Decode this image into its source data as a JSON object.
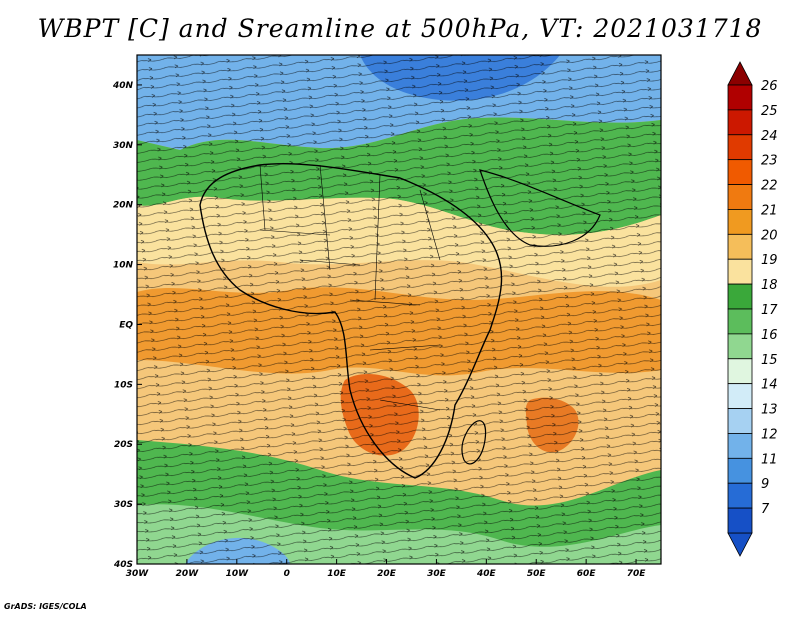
{
  "title": "WBPT [C] and Sreamline at 500hPa, VT: 2021031718",
  "credit": "GrADS: IGES/COLA",
  "map": {
    "lon_range": [
      -30,
      75
    ],
    "lat_range": [
      -40,
      45
    ],
    "lon_ticks": [
      {
        "value": -30,
        "label": "30W"
      },
      {
        "value": -20,
        "label": "20W"
      },
      {
        "value": -10,
        "label": "10W"
      },
      {
        "value": 0,
        "label": "0"
      },
      {
        "value": 10,
        "label": "10E"
      },
      {
        "value": 20,
        "label": "20E"
      },
      {
        "value": 30,
        "label": "30E"
      },
      {
        "value": 40,
        "label": "40E"
      },
      {
        "value": 50,
        "label": "50E"
      },
      {
        "value": 60,
        "label": "60E"
      },
      {
        "value": 70,
        "label": "70E"
      }
    ],
    "lat_ticks": [
      {
        "value": 40,
        "label": "40N"
      },
      {
        "value": 30,
        "label": "30N"
      },
      {
        "value": 20,
        "label": "20N"
      },
      {
        "value": 10,
        "label": "10N"
      },
      {
        "value": 0,
        "label": "EQ"
      },
      {
        "value": -10,
        "label": "10S"
      },
      {
        "value": -20,
        "label": "20S"
      },
      {
        "value": -30,
        "label": "30S"
      },
      {
        "value": -40,
        "label": "40S"
      }
    ]
  },
  "colorbar": {
    "labels": [
      "26",
      "25",
      "24",
      "23",
      "22",
      "21",
      "20",
      "19",
      "18",
      "17",
      "16",
      "15",
      "14",
      "13",
      "12",
      "11",
      "9",
      "7"
    ],
    "colors": [
      "#b00000",
      "#cc1800",
      "#e03a00",
      "#f05a00",
      "#f07a10",
      "#f09a20",
      "#f5be5a",
      "#fae29e",
      "#3aa83a",
      "#5cbd5c",
      "#90d790",
      "#e0f6e0",
      "#d2ecf8",
      "#a6d1f2",
      "#72b2ea",
      "#4692e0",
      "#266cd6",
      "#1650c6"
    ]
  }
}
